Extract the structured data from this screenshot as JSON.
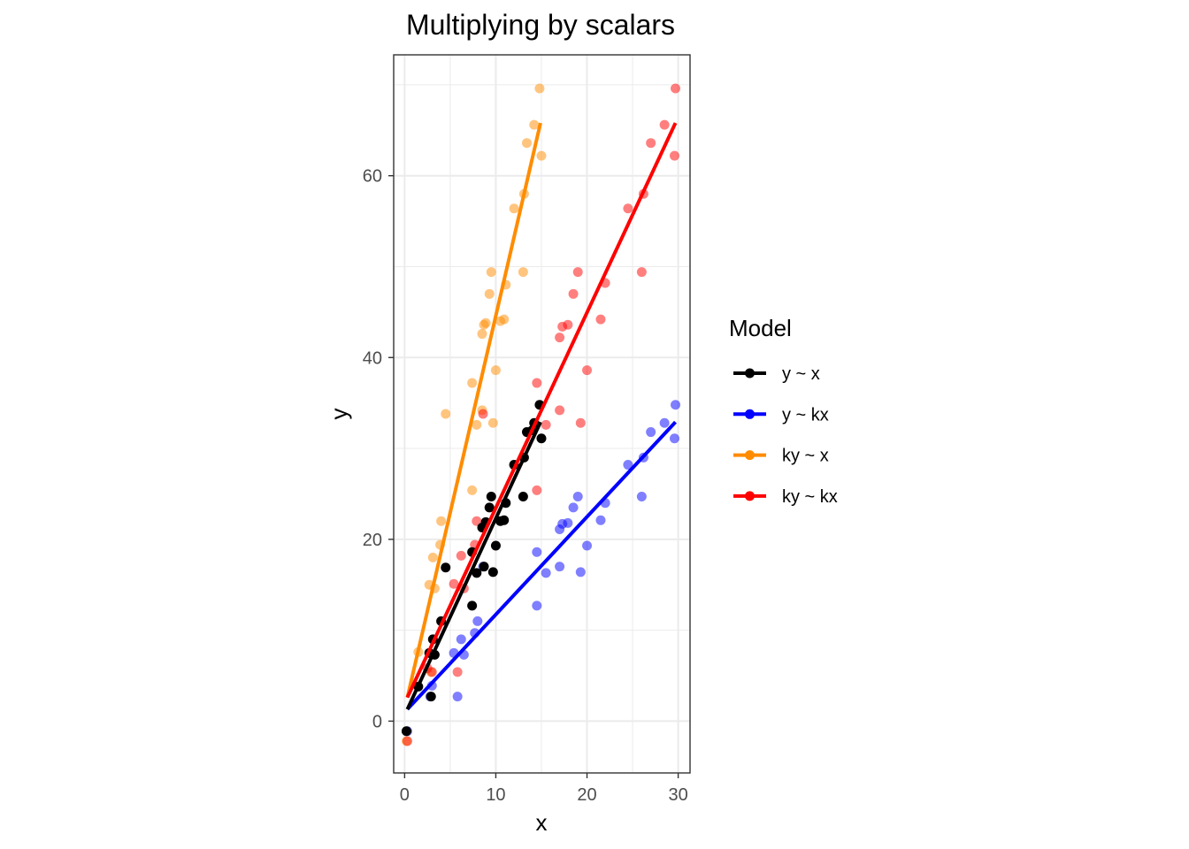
{
  "chart_data": {
    "type": "scatter",
    "title": "Multiplying by scalars",
    "xlabel": "x",
    "ylabel": "y",
    "xlim": [
      -1.2,
      31.3
    ],
    "ylim": [
      -5.7,
      73.3
    ],
    "x_ticks": [
      0,
      10,
      20,
      30
    ],
    "y_ticks": [
      0,
      20,
      40,
      60
    ],
    "grid": true,
    "legend": {
      "title": "Model",
      "position": "right"
    },
    "series": [
      {
        "name": "y ~ x",
        "color": "#000000",
        "point_opacity": 1,
        "line": {
          "x": [
            0.3,
            14.9
          ],
          "y": [
            1.3,
            32.9
          ]
        },
        "points": [
          [
            0.2,
            -1.1
          ],
          [
            1.5,
            3.8
          ],
          [
            2.7,
            7.5
          ],
          [
            2.9,
            2.7
          ],
          [
            3.1,
            9.0
          ],
          [
            3.3,
            7.3
          ],
          [
            4.0,
            11.0
          ],
          [
            4.5,
            16.9
          ],
          [
            7.4,
            12.7
          ],
          [
            7.4,
            18.6
          ],
          [
            7.9,
            16.3
          ],
          [
            8.5,
            21.3
          ],
          [
            8.7,
            17.0
          ],
          [
            8.9,
            21.9
          ],
          [
            9.3,
            23.5
          ],
          [
            9.5,
            24.7
          ],
          [
            9.7,
            16.4
          ],
          [
            10.0,
            19.3
          ],
          [
            10.5,
            22.0
          ],
          [
            10.9,
            22.1
          ],
          [
            11.1,
            24.0
          ],
          [
            12.0,
            28.2
          ],
          [
            13.0,
            24.7
          ],
          [
            13.1,
            29.0
          ],
          [
            13.4,
            31.8
          ],
          [
            14.0,
            32.0
          ],
          [
            14.2,
            32.8
          ],
          [
            14.8,
            34.8
          ],
          [
            15.0,
            31.1
          ]
        ]
      },
      {
        "name": "y ~ kx",
        "color": "#0000FF",
        "point_opacity": 0.5,
        "line": {
          "x": [
            0.3,
            29.7
          ],
          "y": [
            1.3,
            32.9
          ]
        },
        "points": [
          [
            0.3,
            -1.1
          ],
          [
            3.0,
            3.9
          ],
          [
            2.8,
            2.7
          ],
          [
            5.4,
            7.5
          ],
          [
            5.8,
            2.7
          ],
          [
            6.2,
            9.0
          ],
          [
            6.5,
            7.3
          ],
          [
            8.0,
            11.0
          ],
          [
            7.7,
            9.7
          ],
          [
            8.6,
            17.0
          ],
          [
            14.5,
            12.7
          ],
          [
            14.5,
            18.6
          ],
          [
            15.5,
            16.3
          ],
          [
            17.0,
            17.0
          ],
          [
            17.0,
            21.1
          ],
          [
            17.3,
            21.7
          ],
          [
            17.9,
            21.8
          ],
          [
            18.5,
            23.5
          ],
          [
            19.0,
            24.7
          ],
          [
            19.3,
            16.4
          ],
          [
            20.0,
            19.3
          ],
          [
            21.5,
            22.1
          ],
          [
            22.0,
            24.0
          ],
          [
            24.5,
            28.2
          ],
          [
            26.0,
            24.7
          ],
          [
            26.2,
            29.0
          ],
          [
            27.0,
            31.8
          ],
          [
            28.5,
            32.8
          ],
          [
            29.6,
            31.1
          ],
          [
            29.7,
            34.8
          ]
        ]
      },
      {
        "name": "ky ~ x",
        "color": "#FF8C00",
        "point_opacity": 0.5,
        "line": {
          "x": [
            0.3,
            14.9
          ],
          "y": [
            2.6,
            65.8
          ]
        },
        "points": [
          [
            0.2,
            -2.2
          ],
          [
            1.5,
            7.6
          ],
          [
            2.7,
            15.0
          ],
          [
            2.9,
            5.4
          ],
          [
            3.1,
            18.0
          ],
          [
            3.3,
            14.6
          ],
          [
            4.0,
            22.0
          ],
          [
            4.5,
            33.8
          ],
          [
            3.9,
            19.4
          ],
          [
            7.4,
            25.4
          ],
          [
            7.4,
            37.2
          ],
          [
            7.9,
            32.6
          ],
          [
            8.5,
            42.6
          ],
          [
            8.5,
            34.2
          ],
          [
            8.7,
            43.6
          ],
          [
            8.9,
            43.8
          ],
          [
            9.3,
            47.0
          ],
          [
            9.5,
            49.4
          ],
          [
            9.7,
            32.8
          ],
          [
            10.0,
            38.6
          ],
          [
            10.5,
            44.0
          ],
          [
            10.9,
            44.2
          ],
          [
            11.1,
            48.0
          ],
          [
            12.0,
            56.4
          ],
          [
            13.0,
            49.4
          ],
          [
            13.1,
            58.0
          ],
          [
            13.4,
            63.6
          ],
          [
            14.2,
            65.6
          ],
          [
            14.8,
            69.6
          ],
          [
            15.0,
            62.2
          ]
        ]
      },
      {
        "name": "ky ~ kx",
        "color": "#FF0000",
        "point_opacity": 0.5,
        "line": {
          "x": [
            0.3,
            29.7
          ],
          "y": [
            2.6,
            65.8
          ]
        },
        "points": [
          [
            0.3,
            -2.2
          ],
          [
            2.5,
            5.8
          ],
          [
            3.0,
            5.4
          ],
          [
            5.4,
            15.1
          ],
          [
            5.8,
            5.4
          ],
          [
            6.2,
            18.2
          ],
          [
            6.5,
            14.6
          ],
          [
            7.9,
            22.0
          ],
          [
            7.7,
            19.4
          ],
          [
            8.6,
            33.8
          ],
          [
            14.5,
            25.4
          ],
          [
            14.5,
            37.2
          ],
          [
            15.5,
            32.6
          ],
          [
            17.0,
            42.2
          ],
          [
            17.0,
            34.2
          ],
          [
            17.3,
            43.4
          ],
          [
            17.9,
            43.6
          ],
          [
            18.5,
            47.0
          ],
          [
            19.0,
            49.4
          ],
          [
            19.3,
            32.8
          ],
          [
            20.0,
            38.6
          ],
          [
            21.5,
            44.2
          ],
          [
            22.0,
            48.2
          ],
          [
            24.5,
            56.4
          ],
          [
            26.0,
            49.4
          ],
          [
            26.2,
            58.0
          ],
          [
            27.0,
            63.6
          ],
          [
            28.5,
            65.6
          ],
          [
            29.6,
            62.2
          ],
          [
            29.7,
            69.6
          ]
        ]
      }
    ]
  }
}
